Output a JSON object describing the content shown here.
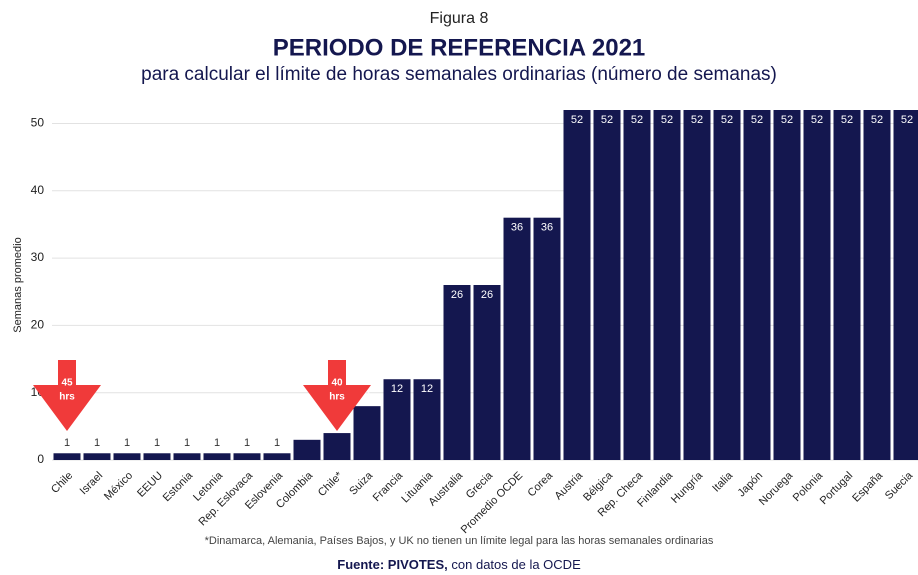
{
  "chart_data": {
    "type": "bar",
    "figure": "Figura 8",
    "title": "PERIODO DE REFERENCIA 2021",
    "subtitle": "para calcular el límite de horas semanales ordinarias (número de semanas)",
    "y_label": "Semanas promedio",
    "categories": [
      "Chile",
      "Israel",
      "México",
      "EEUU",
      "Estonia",
      "Letonia",
      "Rep. Eslovaca",
      "Eslovenia",
      "Colombia",
      "Chile*",
      "Suiza",
      "Francia",
      "Lituania",
      "Australia",
      "Grecia",
      "Promedio OCDE",
      "Corea",
      "Austria",
      "Bélgica",
      "Rep. Checa",
      "Finlandia",
      "Hungría",
      "Italia",
      "Japón",
      "Noruega",
      "Polonia",
      "Portugal",
      "España",
      "Suecia"
    ],
    "values": [
      1,
      1,
      1,
      1,
      1,
      1,
      1,
      1,
      3,
      4,
      8,
      12,
      12,
      26,
      26,
      36,
      36,
      52,
      52,
      52,
      52,
      52,
      52,
      52,
      52,
      52,
      52,
      52,
      52
    ],
    "color": "#14174f",
    "ylim": [
      0,
      52
    ],
    "yticks": [
      0,
      10,
      20,
      30,
      40,
      50
    ],
    "grid": true,
    "annotations": [
      {
        "category": "Chile",
        "lines": [
          "45",
          "hrs"
        ],
        "color": "#f03a3a"
      },
      {
        "category": "Chile*",
        "lines": [
          "40",
          "hrs"
        ],
        "color": "#f03a3a"
      }
    ],
    "footnote": "*Dinamarca, Alemania, Países Bajos, y UK no tienen un límite legal para las horas semanales ordinarias",
    "source": {
      "bold": "Fuente: PIVOTES,",
      "text": "con datos de la OCDE"
    }
  }
}
